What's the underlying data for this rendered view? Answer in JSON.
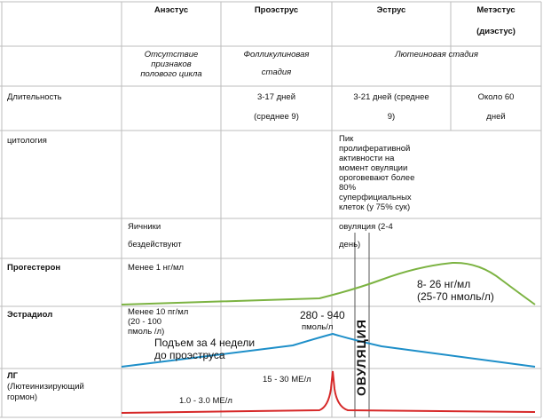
{
  "header": {
    "col1": "Анэстус",
    "col2": "Проэструс",
    "col3": "Эструс",
    "col4_line1": "Метэстус",
    "col4_line2": "(диэстус)"
  },
  "stage_row": {
    "anestrus": [
      "Отсутствие",
      "признаков",
      "полового цикла"
    ],
    "proestrus": [
      "Фолликулиновая",
      "стадия"
    ],
    "luteal": "Лютеиновая стадия"
  },
  "duration_row": {
    "label": "Длительность",
    "proestrus": [
      "3-17 дней",
      "(среднее 9)"
    ],
    "estrus": [
      "3-21 дней (среднее",
      "9)"
    ],
    "metestrus": [
      "Около 60",
      "дней"
    ]
  },
  "cytology_row": {
    "label": "цитология",
    "estrus": [
      "Пик",
      "пролиферативной",
      "активности  на",
      "момент овуляции",
      "ороговевают более",
      "80%",
      "суперфициальных",
      "клеток (у 75% сук)"
    ]
  },
  "ovary_row": {
    "anestrus": [
      "Яичники",
      "бездействуют"
    ],
    "estrus": [
      "овуляция (2-4",
      "день)"
    ]
  },
  "progesterone_row": {
    "label": "Прогестерон",
    "low": "Менее 1 нг/мл",
    "peak": [
      "8- 26 нг/мл",
      "(25-70 нмоль/л)"
    ]
  },
  "estradiol_row": {
    "label": "Эстрадиол",
    "low": [
      "Менее 10 пг/мл",
      "(20 - 100",
      "пмоль /л)"
    ],
    "peak": [
      "280 - 940",
      "пмоль/л"
    ],
    "rise": [
      "Подъем за 4 недели",
      "до проэструса"
    ]
  },
  "lh_row": {
    "label": [
      "ЛГ",
      "(Лютеинизирующий",
      "гормон)"
    ],
    "peak": "15 - 30 МЕ/л",
    "base": "1.0 - 3.0 МЕ/л"
  },
  "ovulation_label": "ОВУЛЯЦИЯ",
  "curves": {
    "progesterone_color": "#7cb342",
    "estradiol_color": "#1e8fc9",
    "lh_color": "#d62828"
  }
}
